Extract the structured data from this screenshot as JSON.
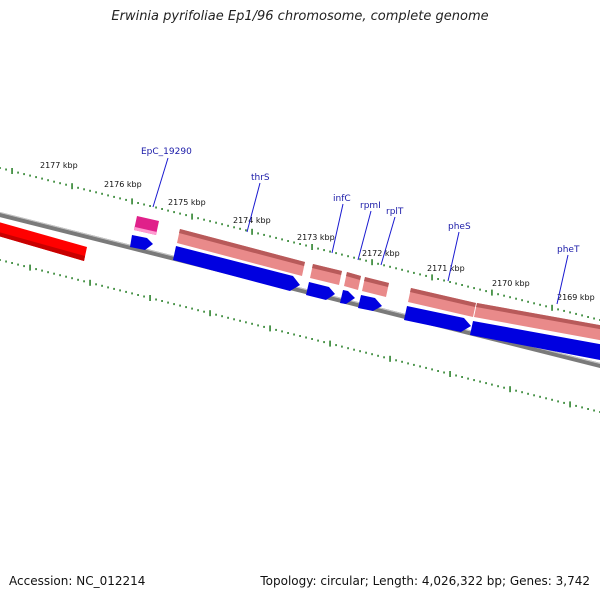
{
  "title": "Erwinia pyrifoliae Ep1/96 chromosome, complete genome",
  "footer": {
    "accession": "Accession: NC_012214",
    "summary": "Topology: circular; Length: 4,026,322 bp; Genes: 3,742"
  },
  "colors": {
    "backbone": "#7a7a7a",
    "tick": "#1e7a1e",
    "cds_forward": "#e98a8a",
    "cds_reverse": "#0000e0",
    "rrna": "#ff0000",
    "trna": "#e0208a",
    "label_line": "#1a1ad0"
  },
  "scale_labels": [
    {
      "label": "2177 kbp"
    },
    {
      "label": "2176 kbp"
    },
    {
      "label": "2175 kbp"
    },
    {
      "label": "2174 kbp"
    },
    {
      "label": "2173 kbp"
    },
    {
      "label": "2172 kbp"
    },
    {
      "label": "2171 kbp"
    },
    {
      "label": "2170 kbp"
    },
    {
      "label": "2169 kbp"
    }
  ],
  "gene_labels": [
    {
      "label": "EpC_19290"
    },
    {
      "label": "thrS"
    },
    {
      "label": "infC"
    },
    {
      "label": "rpmI"
    },
    {
      "label": "rplT"
    },
    {
      "label": "pheS"
    },
    {
      "label": "pheT"
    }
  ]
}
